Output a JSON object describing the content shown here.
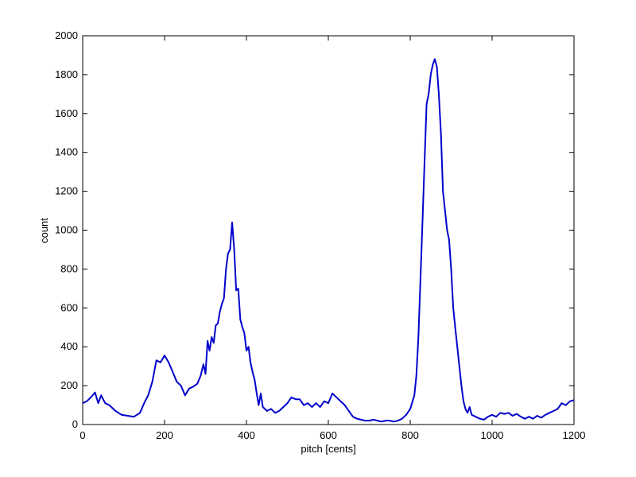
{
  "chart_data": {
    "type": "line",
    "title": "",
    "xlabel": "pitch [cents]",
    "ylabel": "count",
    "xlim": [
      0,
      1200
    ],
    "ylim": [
      0,
      2000
    ],
    "xticks": [
      0,
      200,
      400,
      600,
      800,
      1000,
      1200
    ],
    "yticks": [
      0,
      200,
      400,
      600,
      800,
      1000,
      1200,
      1400,
      1600,
      1800,
      2000
    ],
    "grid": false,
    "legend": "none",
    "line_color": "#0000cc",
    "series": [
      {
        "x": [
          0,
          10,
          20,
          30,
          38,
          45,
          55,
          65,
          80,
          95,
          110,
          125,
          140,
          150,
          160,
          170,
          180,
          190,
          200,
          210,
          220,
          230,
          240,
          250,
          260,
          270,
          280,
          288,
          295,
          300,
          305,
          310,
          315,
          320,
          325,
          330,
          335,
          340,
          345,
          350,
          355,
          360,
          365,
          370,
          375,
          380,
          385,
          390,
          395,
          400,
          405,
          410,
          415,
          420,
          425,
          430,
          435,
          440,
          445,
          450,
          460,
          470,
          480,
          490,
          500,
          510,
          520,
          530,
          540,
          550,
          560,
          570,
          580,
          590,
          600,
          610,
          620,
          630,
          640,
          650,
          660,
          670,
          680,
          690,
          700,
          710,
          720,
          730,
          740,
          750,
          760,
          770,
          780,
          790,
          800,
          810,
          815,
          820,
          825,
          830,
          835,
          840,
          845,
          850,
          855,
          860,
          865,
          870,
          875,
          880,
          885,
          890,
          895,
          900,
          905,
          910,
          915,
          920,
          925,
          930,
          935,
          940,
          945,
          950,
          960,
          970,
          980,
          990,
          1000,
          1010,
          1020,
          1030,
          1040,
          1050,
          1060,
          1070,
          1080,
          1090,
          1100,
          1110,
          1120,
          1130,
          1140,
          1150,
          1160,
          1170,
          1180,
          1190,
          1200
        ],
        "y": [
          110,
          120,
          140,
          165,
          110,
          150,
          110,
          100,
          70,
          50,
          45,
          40,
          60,
          110,
          150,
          220,
          330,
          320,
          355,
          320,
          270,
          220,
          200,
          150,
          185,
          195,
          210,
          250,
          310,
          260,
          430,
          380,
          450,
          420,
          510,
          520,
          580,
          620,
          650,
          800,
          880,
          900,
          1040,
          900,
          690,
          700,
          540,
          500,
          470,
          380,
          400,
          320,
          270,
          230,
          160,
          100,
          160,
          90,
          80,
          70,
          80,
          60,
          70,
          90,
          110,
          140,
          130,
          130,
          100,
          110,
          90,
          110,
          90,
          120,
          110,
          160,
          140,
          120,
          100,
          70,
          40,
          30,
          25,
          20,
          20,
          25,
          20,
          15,
          20,
          20,
          15,
          20,
          30,
          50,
          80,
          150,
          250,
          450,
          750,
          1050,
          1350,
          1650,
          1700,
          1800,
          1850,
          1880,
          1840,
          1700,
          1500,
          1200,
          1100,
          1000,
          950,
          800,
          600,
          500,
          400,
          300,
          200,
          120,
          80,
          60,
          90,
          50,
          40,
          30,
          25,
          40,
          50,
          40,
          60,
          55,
          60,
          45,
          55,
          40,
          30,
          40,
          30,
          45,
          35,
          50,
          60,
          70,
          80,
          110,
          100,
          120,
          125
        ]
      }
    ]
  }
}
